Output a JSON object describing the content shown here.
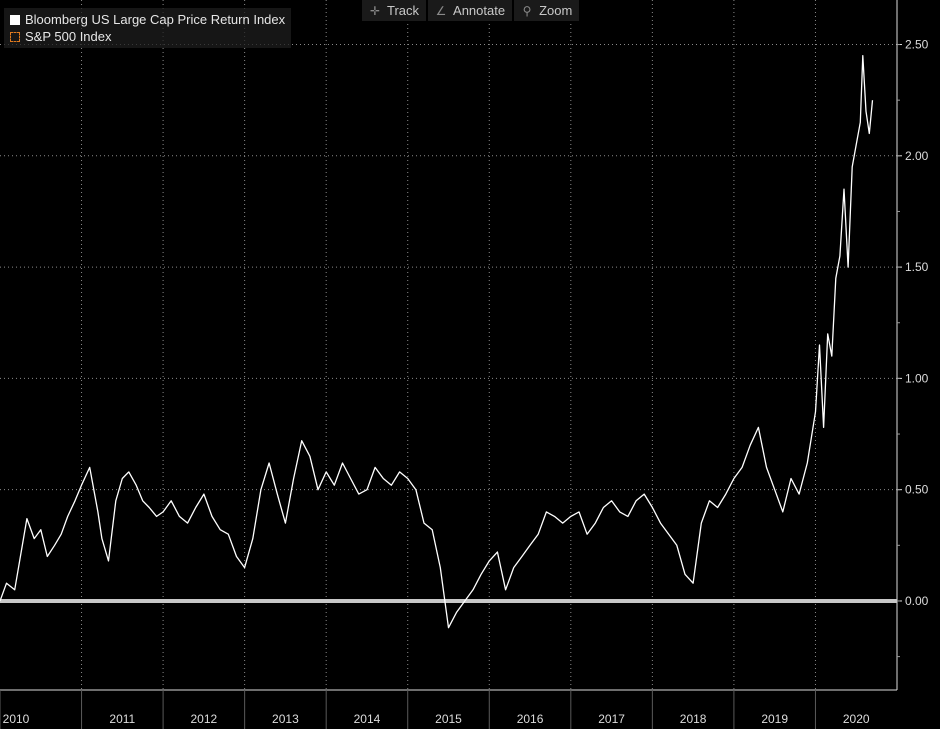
{
  "toolbar": {
    "track_label": "Track",
    "annotate_label": "Annotate",
    "zoom_label": "Zoom"
  },
  "legend": {
    "items": [
      {
        "label": "Bloomberg US Large Cap Price Return Index",
        "color": "#ffffff",
        "style": "solid"
      },
      {
        "label": "S&P 500 Index",
        "color": "#e07a1f",
        "style": "dashed"
      }
    ]
  },
  "chart_data": {
    "type": "line",
    "title": "",
    "xlabel": "",
    "ylabel": "",
    "background": "#000000",
    "grid": true,
    "legend_position": "top-left",
    "x_ticks": [
      "2010",
      "2011",
      "2012",
      "2013",
      "2014",
      "2015",
      "2016",
      "2017",
      "2018",
      "2019",
      "2020"
    ],
    "y_ticks": [
      "0.00",
      "0.50",
      "1.00",
      "1.50",
      "2.00",
      "2.50"
    ],
    "xlim": [
      2010.0,
      2021.0
    ],
    "ylim": [
      -0.4,
      2.7
    ],
    "baseline": 0.0,
    "series": [
      {
        "name": "Bloomberg US Large Cap Price Return Index",
        "color": "#ffffff",
        "x": [
          2010.0,
          2010.08,
          2010.18,
          2010.25,
          2010.33,
          2010.42,
          2010.5,
          2010.58,
          2010.67,
          2010.75,
          2010.83,
          2010.92,
          2011.0,
          2011.1,
          2011.2,
          2011.25,
          2011.33,
          2011.42,
          2011.5,
          2011.58,
          2011.67,
          2011.75,
          2011.83,
          2011.92,
          2012.0,
          2012.1,
          2012.2,
          2012.3,
          2012.4,
          2012.5,
          2012.6,
          2012.7,
          2012.8,
          2012.9,
          2013.0,
          2013.1,
          2013.2,
          2013.3,
          2013.4,
          2013.5,
          2013.6,
          2013.7,
          2013.8,
          2013.9,
          2014.0,
          2014.1,
          2014.2,
          2014.3,
          2014.4,
          2014.5,
          2014.6,
          2014.7,
          2014.8,
          2014.9,
          2015.0,
          2015.1,
          2015.2,
          2015.3,
          2015.4,
          2015.5,
          2015.6,
          2015.7,
          2015.8,
          2015.9,
          2016.0,
          2016.1,
          2016.2,
          2016.3,
          2016.4,
          2016.5,
          2016.6,
          2016.7,
          2016.8,
          2016.9,
          2017.0,
          2017.1,
          2017.2,
          2017.3,
          2017.4,
          2017.5,
          2017.6,
          2017.7,
          2017.8,
          2017.9,
          2018.0,
          2018.1,
          2018.2,
          2018.3,
          2018.4,
          2018.5,
          2018.6,
          2018.7,
          2018.8,
          2018.9,
          2019.0,
          2019.1,
          2019.2,
          2019.3,
          2019.4,
          2019.5,
          2019.6,
          2019.7,
          2019.8,
          2019.9,
          2020.0,
          2020.05,
          2020.1,
          2020.15,
          2020.2,
          2020.25,
          2020.3,
          2020.35,
          2020.4,
          2020.45,
          2020.5,
          2020.55,
          2020.58,
          2020.62,
          2020.66,
          2020.7
        ],
        "values": [
          0.0,
          0.08,
          0.05,
          0.2,
          0.37,
          0.28,
          0.32,
          0.2,
          0.25,
          0.3,
          0.38,
          0.45,
          0.52,
          0.6,
          0.4,
          0.28,
          0.18,
          0.45,
          0.55,
          0.58,
          0.52,
          0.45,
          0.42,
          0.38,
          0.4,
          0.45,
          0.38,
          0.35,
          0.42,
          0.48,
          0.38,
          0.32,
          0.3,
          0.2,
          0.15,
          0.28,
          0.5,
          0.62,
          0.48,
          0.35,
          0.55,
          0.72,
          0.65,
          0.5,
          0.58,
          0.52,
          0.62,
          0.55,
          0.48,
          0.5,
          0.6,
          0.55,
          0.52,
          0.58,
          0.55,
          0.5,
          0.35,
          0.32,
          0.15,
          -0.12,
          -0.05,
          0.0,
          0.05,
          0.12,
          0.18,
          0.22,
          0.05,
          0.15,
          0.2,
          0.25,
          0.3,
          0.4,
          0.38,
          0.35,
          0.38,
          0.4,
          0.3,
          0.35,
          0.42,
          0.45,
          0.4,
          0.38,
          0.45,
          0.48,
          0.42,
          0.35,
          0.3,
          0.25,
          0.12,
          0.08,
          0.35,
          0.45,
          0.42,
          0.48,
          0.55,
          0.6,
          0.7,
          0.78,
          0.6,
          0.5,
          0.4,
          0.55,
          0.48,
          0.62,
          0.85,
          1.15,
          0.78,
          1.2,
          1.1,
          1.45,
          1.55,
          1.85,
          1.5,
          1.95,
          2.05,
          2.15,
          2.45,
          2.2,
          2.1,
          2.25
        ]
      }
    ]
  }
}
